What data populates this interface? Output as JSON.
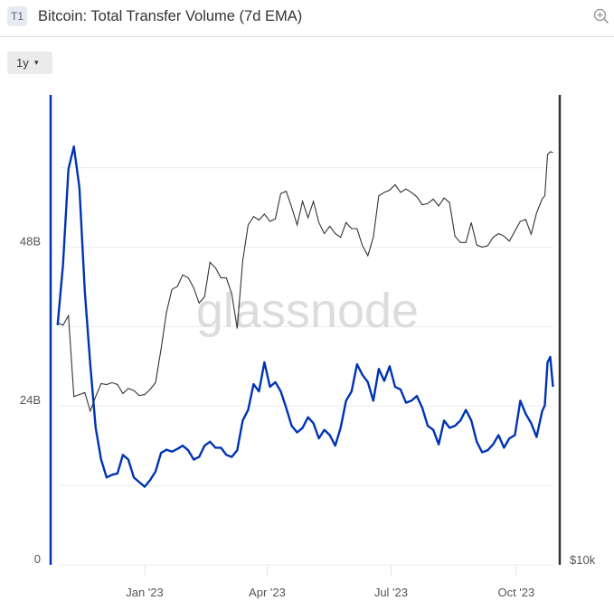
{
  "header": {
    "badge": "T1",
    "title": "Bitcoin: Total Transfer Volume (7d EMA)",
    "zoom_icon": "zoom-in-icon"
  },
  "controls": {
    "range_label": "1y",
    "range_caret": "▾"
  },
  "watermark": "glassnode",
  "colors": {
    "volume": "#0033b3",
    "price": "#333333",
    "grid": "#ececec"
  },
  "chart_data": {
    "type": "line",
    "title": "Bitcoin: Total Transfer Volume (7d EMA)",
    "x_ticks": [
      "Jan '23",
      "Apr '23",
      "Jul '23",
      "Oct '23"
    ],
    "x_tick_dates": [
      "2023-01-01",
      "2023-04-01",
      "2023-07-01",
      "2023-10-01"
    ],
    "y_left": {
      "ticks": [
        "0",
        "24B",
        "48B"
      ],
      "tick_values": [
        0,
        24,
        48
      ],
      "grid_step": 12,
      "range": [
        0,
        71
      ],
      "unit": "B"
    },
    "y_right": {
      "ticks": [
        "$10k"
      ],
      "tick_values": [
        10000
      ],
      "scale": "log",
      "range": [
        10000,
        40500
      ]
    },
    "grid": true,
    "x": [
      "2022-10-29",
      "2022-11-02",
      "2022-11-06",
      "2022-11-10",
      "2022-11-14",
      "2022-11-18",
      "2022-11-22",
      "2022-11-26",
      "2022-11-30",
      "2022-12-04",
      "2022-12-08",
      "2022-12-12",
      "2022-12-16",
      "2022-12-20",
      "2022-12-24",
      "2022-12-28",
      "2023-01-01",
      "2023-01-05",
      "2023-01-09",
      "2023-01-13",
      "2023-01-17",
      "2023-01-21",
      "2023-01-25",
      "2023-01-29",
      "2023-02-02",
      "2023-02-06",
      "2023-02-10",
      "2023-02-14",
      "2023-02-18",
      "2023-02-22",
      "2023-02-26",
      "2023-03-02",
      "2023-03-06",
      "2023-03-10",
      "2023-03-14",
      "2023-03-18",
      "2023-03-22",
      "2023-03-26",
      "2023-03-30",
      "2023-04-03",
      "2023-04-07",
      "2023-04-11",
      "2023-04-15",
      "2023-04-19",
      "2023-04-23",
      "2023-04-27",
      "2023-05-01",
      "2023-05-05",
      "2023-05-09",
      "2023-05-13",
      "2023-05-17",
      "2023-05-21",
      "2023-05-25",
      "2023-05-29",
      "2023-06-02",
      "2023-06-06",
      "2023-06-10",
      "2023-06-14",
      "2023-06-18",
      "2023-06-22",
      "2023-06-26",
      "2023-06-30",
      "2023-07-04",
      "2023-07-08",
      "2023-07-12",
      "2023-07-16",
      "2023-07-20",
      "2023-07-24",
      "2023-07-28",
      "2023-08-01",
      "2023-08-05",
      "2023-08-09",
      "2023-08-13",
      "2023-08-17",
      "2023-08-21",
      "2023-08-25",
      "2023-08-29",
      "2023-09-02",
      "2023-09-06",
      "2023-09-10",
      "2023-09-14",
      "2023-09-18",
      "2023-09-22",
      "2023-09-26",
      "2023-09-30",
      "2023-10-04",
      "2023-10-08",
      "2023-10-12",
      "2023-10-16",
      "2023-10-20",
      "2023-10-22",
      "2023-10-24",
      "2023-10-26",
      "2023-10-28"
    ],
    "series": [
      {
        "axis": "left",
        "color": "#0033b3",
        "values": [
          36.2,
          45.4,
          59.8,
          63.2,
          57.0,
          41.3,
          30.3,
          20.7,
          15.9,
          13.2,
          13.6,
          13.8,
          16.6,
          15.9,
          13.2,
          12.5,
          11.8,
          12.8,
          14.1,
          16.9,
          17.4,
          17.1,
          17.5,
          18.0,
          17.3,
          15.9,
          16.3,
          18.0,
          18.6,
          17.7,
          17.7,
          16.6,
          16.3,
          17.3,
          21.8,
          23.4,
          27.3,
          26.2,
          30.6,
          26.9,
          27.6,
          26.2,
          23.7,
          21.0,
          20.0,
          20.7,
          22.3,
          21.4,
          19.1,
          20.4,
          19.6,
          18.0,
          20.7,
          24.8,
          26.2,
          30.3,
          28.7,
          27.6,
          24.8,
          29.6,
          27.8,
          30.0,
          26.9,
          26.5,
          24.5,
          24.8,
          25.5,
          23.7,
          21.0,
          20.4,
          18.2,
          21.8,
          20.7,
          21.0,
          21.8,
          23.4,
          21.8,
          18.6,
          17.0,
          17.3,
          18.2,
          19.6,
          17.7,
          19.1,
          19.6,
          24.8,
          22.8,
          21.4,
          19.3,
          23.2,
          24.1,
          30.6,
          31.4,
          26.9
        ]
      },
      {
        "axis": "right",
        "color": "#333333",
        "values": [
          20550,
          20400,
          21000,
          16500,
          16600,
          16700,
          15800,
          16500,
          17150,
          17100,
          17200,
          17100,
          16650,
          16900,
          16800,
          16550,
          16600,
          16850,
          17200,
          19000,
          21200,
          22700,
          22900,
          23700,
          23500,
          22800,
          21800,
          22200,
          24600,
          24200,
          23500,
          23500,
          22400,
          20200,
          24700,
          27500,
          28200,
          27900,
          28400,
          27800,
          28000,
          30200,
          30400,
          29000,
          27500,
          29500,
          28100,
          29500,
          27700,
          26800,
          27400,
          26800,
          26500,
          27700,
          27200,
          27200,
          25850,
          25100,
          26500,
          30000,
          30300,
          30500,
          31000,
          30300,
          30600,
          30300,
          29900,
          29200,
          29300,
          29700,
          29100,
          29800,
          29400,
          26600,
          26100,
          26100,
          27700,
          25900,
          25750,
          25850,
          26500,
          26800,
          26600,
          26200,
          27000,
          27800,
          27950,
          26750,
          28500,
          29700,
          30000,
          33900,
          34200,
          34100
        ]
      }
    ]
  }
}
